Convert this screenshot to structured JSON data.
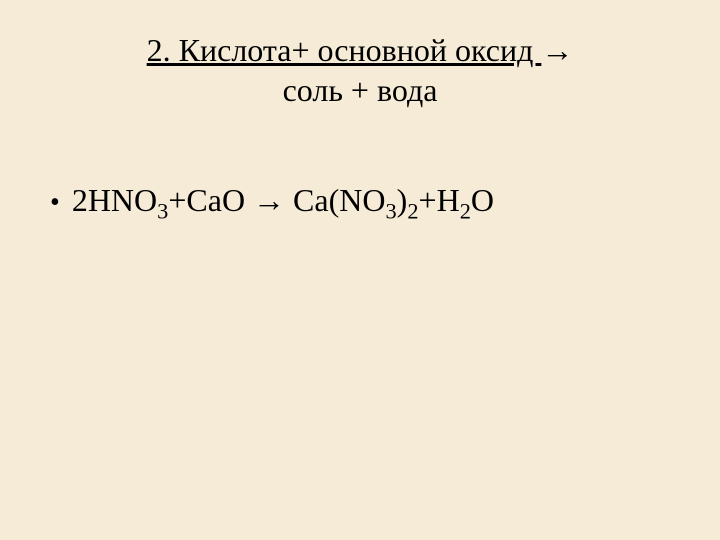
{
  "slide": {
    "title": {
      "line1_prefix": "2. Кислота+ основной оксид ",
      "line1_arrow": "→",
      "line2": "соль + вода",
      "fontsize": 32,
      "underline_line1": true
    },
    "content": {
      "bullet": "•",
      "equation": {
        "coeff1": "2",
        "reactant1": "HNO",
        "reactant1_sub": "3",
        "plus1": "+",
        "reactant2": "CaO",
        "arrow": "→",
        "product1": "Ca(NO",
        "product1_sub1": "3",
        "product1_close": ")",
        "product1_sub2": "2",
        "plus2": "+",
        "product2": "H",
        "product2_sub": "2",
        "product2_end": "O"
      },
      "fontsize": 32
    },
    "colors": {
      "background": "#f5ebd7",
      "text": "#000000"
    }
  }
}
